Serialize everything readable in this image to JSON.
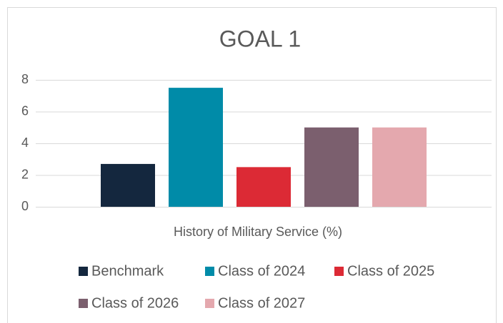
{
  "chart_data": {
    "type": "bar",
    "title": "GOAL 1",
    "categories": [
      "History of Military Service (%)"
    ],
    "series": [
      {
        "name": "Benchmark",
        "color": "#14273e",
        "values": [
          2.7
        ]
      },
      {
        "name": "Class of 2024",
        "color": "#008ba8",
        "values": [
          7.5
        ]
      },
      {
        "name": "Class of 2025",
        "color": "#dc2a35",
        "values": [
          2.5
        ]
      },
      {
        "name": "Class of 2026",
        "color": "#7b5f6e",
        "values": [
          5
        ]
      },
      {
        "name": "Class of 2027",
        "color": "#e4a8ae",
        "values": [
          5
        ]
      }
    ],
    "ylim": [
      0,
      8
    ],
    "yticks": [
      0,
      2,
      4,
      6,
      8
    ],
    "grid": true,
    "legend": "bottom"
  }
}
